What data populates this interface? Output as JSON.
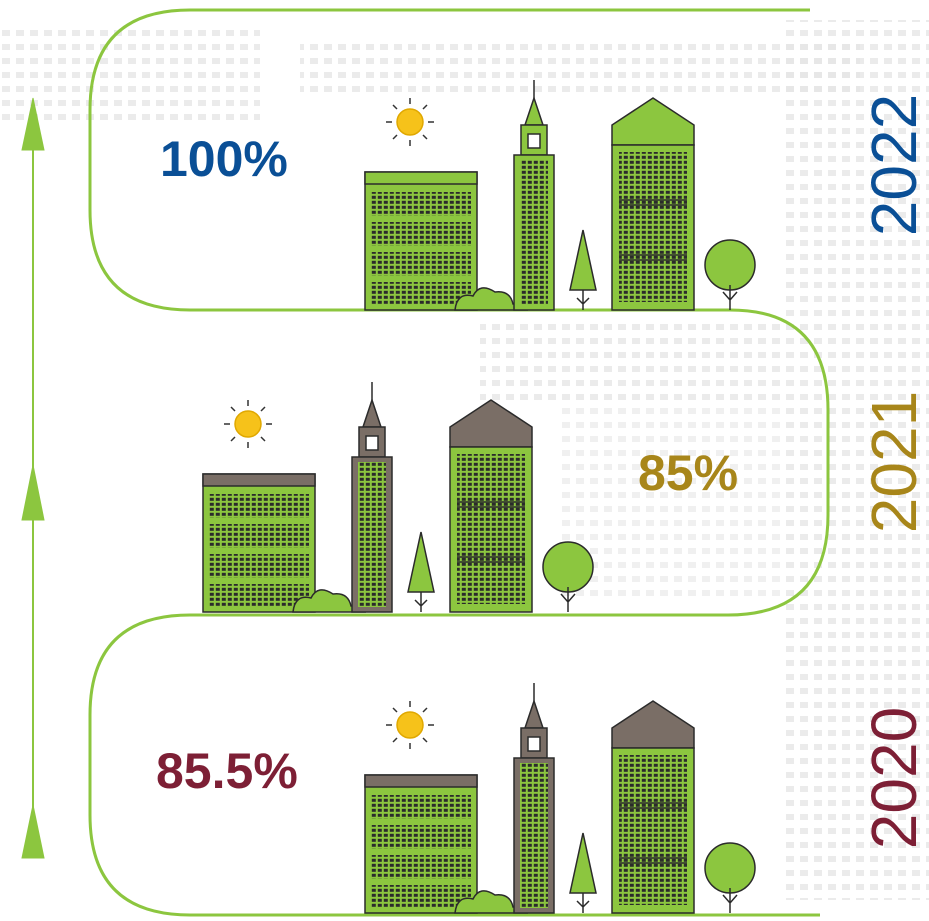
{
  "milestones": [
    {
      "year": "2022",
      "value": "100%"
    },
    {
      "year": "2021",
      "value": "85%"
    },
    {
      "year": "2020",
      "value": "85.5%"
    }
  ]
}
